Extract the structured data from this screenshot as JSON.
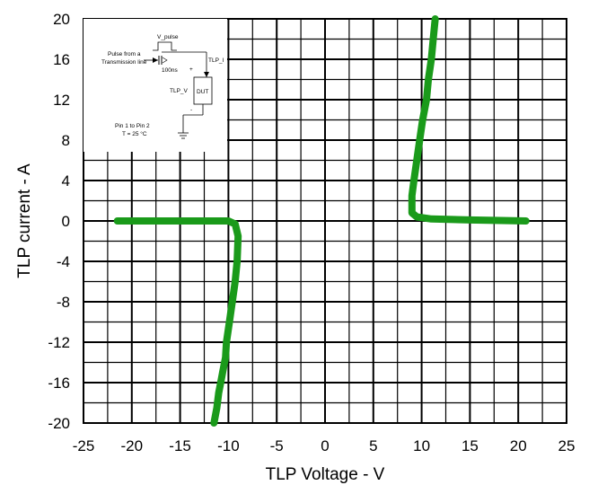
{
  "chart_data": {
    "type": "line",
    "title": "",
    "xlabel": "TLP Voltage - V",
    "ylabel": "TLP current - A",
    "xlim": [
      -25,
      25
    ],
    "ylim": [
      -20,
      20
    ],
    "x_ticks": [
      -25,
      -20,
      -15,
      -10,
      -5,
      0,
      5,
      10,
      15,
      20,
      25
    ],
    "y_ticks": [
      20,
      16,
      12,
      8,
      4,
      0,
      -4,
      -8,
      -12,
      -16,
      -20
    ],
    "x_tick_labels": [
      "-25",
      "-20",
      "-15",
      "-10",
      "-5",
      "0",
      "5",
      "10",
      "15",
      "20",
      "25"
    ],
    "y_tick_labels": [
      "20",
      "16",
      "12",
      "8",
      "4",
      "0",
      "-4",
      "-8",
      "-12",
      "-16",
      "-20"
    ],
    "grid": true,
    "grid_minor_step_x": 2.5,
    "grid_minor_step_y": 2,
    "series_color": "#1a9a1a",
    "series": [
      {
        "x": [
          -21.5,
          -15,
          -10,
          -9.3,
          -9.0,
          -9.1,
          -9.3,
          -9.6,
          -9.9,
          -10.2,
          -10.3,
          -10.6,
          -10.8,
          -11.0,
          -11.2,
          -11.5
        ],
        "y": [
          0,
          0,
          0,
          -0.3,
          -1.5,
          -4,
          -6,
          -8,
          -10,
          -12,
          -13.5,
          -15,
          -16,
          -17,
          -18.5,
          -20
        ]
      },
      {
        "x": [
          20.8,
          15,
          11,
          9.5,
          9.0,
          9.0,
          9.2,
          9.5,
          9.8,
          10.1,
          10.5,
          10.7,
          11.0,
          11.2,
          11.4
        ],
        "y": [
          0,
          0.1,
          0.2,
          0.4,
          0.8,
          2.5,
          4,
          6,
          8,
          10,
          12,
          14,
          16,
          18,
          20
        ]
      }
    ],
    "inset": {
      "labels": {
        "v_pulse": "V_pulse",
        "pulse_from_line1": "Pulse from a",
        "pulse_from_line2": "Transmission line",
        "width": "100ns",
        "tlp_i": "TLP_I",
        "plus": "+",
        "minus": "-",
        "tlp_v": "TLP_V",
        "dut": "DUT",
        "pins": "Pin 1 to Pin 2",
        "temperature": "T = 25 °C"
      }
    }
  }
}
